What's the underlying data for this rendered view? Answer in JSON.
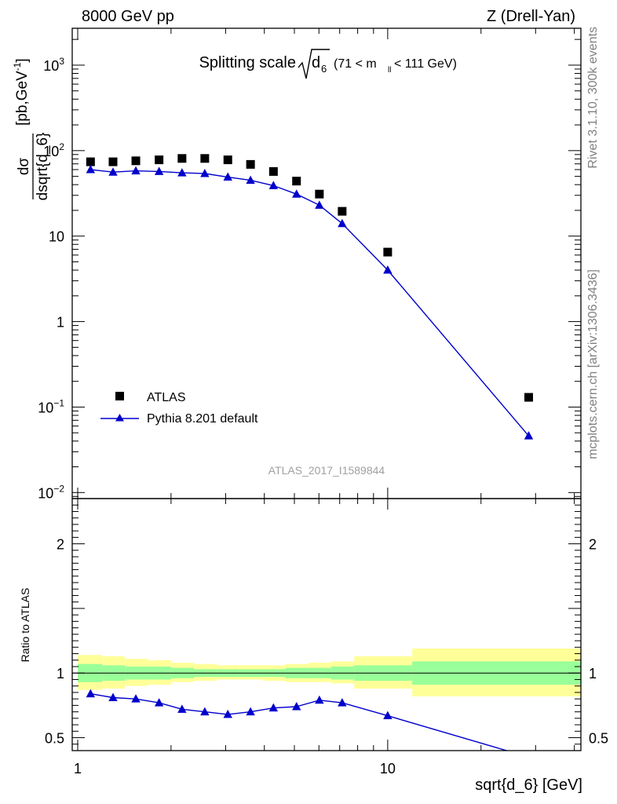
{
  "header": {
    "left": "8000 GeV pp",
    "right": "Z (Drell-Yan)"
  },
  "side_labels": {
    "rivet": "Rivet 3.1.10,  300k events",
    "mcplots": "mcplots.cern.ch [arXiv:1306.3436]"
  },
  "watermark": "ATLAS_2017_I1589844",
  "chart_data": [
    {
      "type": "scatter",
      "title_main": "Splitting scale",
      "title_sym": "d",
      "title_sub": "6",
      "title_cut_pre": "(71 < m",
      "title_cut_sub": "ll",
      "title_cut_post": " < 111 GeV)",
      "ylabel_num": "dσ",
      "ylabel_den": "dsqrt{d_6}",
      "ylabel_unit_pre": "[pb,GeV",
      "ylabel_unit_sup": "-1",
      "ylabel_unit_post": "]",
      "xscale": "log",
      "yscale": "log",
      "xlim": [
        0.96,
        42
      ],
      "ylim": [
        0.0085,
        2700
      ],
      "y_ticks": [
        {
          "value": 0.01,
          "base": "10",
          "exp": "−2"
        },
        {
          "value": 0.1,
          "base": "10",
          "exp": "−1"
        },
        {
          "value": 1,
          "label": "1"
        },
        {
          "value": 10,
          "label": "10"
        },
        {
          "value": 100,
          "base": "10",
          "exp": "2"
        },
        {
          "value": 1000,
          "base": "10",
          "exp": "3"
        }
      ],
      "legend": {
        "placement": "lower-left",
        "entries": [
          "ATLAS",
          "Pythia 8.201 default"
        ]
      },
      "series": [
        {
          "name": "ATLAS",
          "marker": "square",
          "color": "#000000",
          "x": [
            1.1,
            1.3,
            1.54,
            1.83,
            2.17,
            2.57,
            3.05,
            3.61,
            4.28,
            5.08,
            6.02,
            7.13,
            10.0,
            28.5
          ],
          "y": [
            74,
            74,
            76,
            78,
            81,
            81,
            78,
            69,
            57,
            44,
            31,
            19.5,
            6.5,
            0.13
          ]
        },
        {
          "name": "Pythia 8.201 default",
          "marker": "triangle",
          "color": "#0000cc",
          "x": [
            1.1,
            1.3,
            1.54,
            1.83,
            2.17,
            2.57,
            3.05,
            3.61,
            4.28,
            5.08,
            6.02,
            7.13,
            10.0,
            28.5
          ],
          "y": [
            60,
            56,
            58,
            57,
            55,
            54,
            49,
            45,
            39,
            31,
            23,
            14,
            4.0,
            0.046
          ]
        }
      ]
    },
    {
      "type": "line",
      "ylabel": "Ratio to ATLAS",
      "xlabel": "sqrt{d_6} [GeV]",
      "xscale": "log",
      "xlim": [
        0.96,
        42
      ],
      "ylim": [
        0.4,
        2.35
      ],
      "x_ticks": [
        {
          "value": 1,
          "label": "1"
        },
        {
          "value": 10,
          "label": "10"
        }
      ],
      "y_ticks": [
        {
          "value": 0.5,
          "label": "0.5"
        },
        {
          "value": 1,
          "label": "1"
        },
        {
          "value": 2,
          "label": "2"
        }
      ],
      "reference": 1,
      "bands": {
        "edges": [
          1.0,
          1.2,
          1.42,
          1.68,
          2.0,
          2.37,
          2.81,
          3.33,
          3.95,
          4.68,
          5.55,
          6.58,
          7.8,
          12.0,
          42
        ],
        "inner_color": "#99ff99",
        "outer_color": "#ffff99",
        "inner_low": [
          0.93,
          0.94,
          0.95,
          0.95,
          0.96,
          0.97,
          0.97,
          0.97,
          0.97,
          0.96,
          0.96,
          0.95,
          0.94,
          0.91
        ],
        "inner_high": [
          1.07,
          1.06,
          1.05,
          1.05,
          1.04,
          1.03,
          1.03,
          1.03,
          1.03,
          1.04,
          1.04,
          1.05,
          1.06,
          1.09
        ],
        "outer_low": [
          0.87,
          0.88,
          0.9,
          0.91,
          0.93,
          0.94,
          0.95,
          0.95,
          0.94,
          0.93,
          0.93,
          0.92,
          0.88,
          0.82
        ],
        "outer_high": [
          1.14,
          1.13,
          1.11,
          1.1,
          1.08,
          1.07,
          1.06,
          1.06,
          1.06,
          1.07,
          1.08,
          1.09,
          1.13,
          1.19
        ]
      },
      "series": [
        {
          "name": "Pythia 8.201 default",
          "marker": "triangle",
          "color": "#0000cc",
          "x": [
            1.1,
            1.3,
            1.54,
            1.83,
            2.17,
            2.57,
            3.05,
            3.61,
            4.28,
            5.08,
            6.02,
            7.13,
            10.0,
            28.5
          ],
          "y": [
            0.84,
            0.81,
            0.8,
            0.77,
            0.72,
            0.7,
            0.68,
            0.7,
            0.73,
            0.74,
            0.79,
            0.77,
            0.67,
            0.35
          ]
        }
      ]
    }
  ]
}
